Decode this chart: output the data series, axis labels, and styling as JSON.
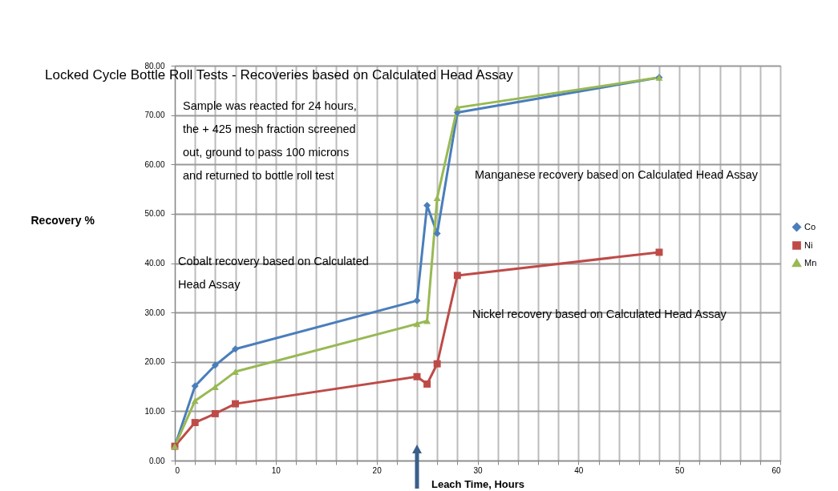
{
  "chart_data": {
    "type": "line",
    "title": "Locked Cycle Bottle Roll Tests  - Recoveries based on Calculated Head Assay",
    "xlabel": "Leach Time, Hours",
    "ylabel": "Recovery %",
    "x": [
      0,
      2,
      4,
      6,
      24,
      25,
      26,
      28,
      48
    ],
    "series": [
      {
        "name": "Co",
        "color": "#4a7ebb",
        "marker": "diamond",
        "values": [
          2.9,
          15.1,
          19.3,
          22.6,
          32.4,
          51.7,
          46.0,
          70.5,
          77.6
        ]
      },
      {
        "name": "Ni",
        "color": "#be4b48",
        "marker": "square",
        "values": [
          2.9,
          7.7,
          9.5,
          11.5,
          17.0,
          15.5,
          19.6,
          37.5,
          42.2
        ]
      },
      {
        "name": "Mn",
        "color": "#98b954",
        "marker": "triangle",
        "values": [
          2.9,
          12.1,
          14.9,
          18.0,
          27.7,
          28.3,
          53.2,
          71.5,
          77.6
        ]
      }
    ],
    "xlim": [
      0,
      60
    ],
    "xticks": [
      0,
      {
        "value": 2,
        "label": null
      },
      {
        "value": 4,
        "label": null
      },
      {
        "value": 6,
        "label": null
      },
      {
        "value": 8,
        "label": null
      },
      10,
      {
        "value": 12,
        "label": null
      },
      {
        "value": 14,
        "label": null
      },
      {
        "value": 16,
        "label": null
      },
      {
        "value": 18,
        "label": null
      },
      20,
      {
        "value": 22,
        "label": null
      },
      {
        "value": 24,
        "label": null
      },
      {
        "value": 26,
        "label": null
      },
      {
        "value": 28,
        "label": null
      },
      30,
      {
        "value": 32,
        "label": null
      },
      {
        "value": 34,
        "label": null
      },
      {
        "value": 36,
        "label": null
      },
      {
        "value": 38,
        "label": null
      },
      40,
      {
        "value": 42,
        "label": null
      },
      {
        "value": 44,
        "label": null
      },
      {
        "value": 46,
        "label": null
      },
      {
        "value": 48,
        "label": null
      },
      50,
      {
        "value": 52,
        "label": null
      },
      {
        "value": 54,
        "label": null
      },
      {
        "value": 56,
        "label": null
      },
      {
        "value": 58,
        "label": null
      },
      60
    ],
    "ylim": [
      0,
      80
    ],
    "yticks": [
      {
        "value": 0,
        "label": "0.00"
      },
      {
        "value": 10,
        "label": "10.00"
      },
      {
        "value": 20,
        "label": "20.00"
      },
      {
        "value": 30,
        "label": "30.00"
      },
      {
        "value": 40,
        "label": "40.00"
      },
      {
        "value": 50,
        "label": "50.00"
      },
      {
        "value": 60,
        "label": "60.00"
      },
      {
        "value": 70,
        "label": "70.00"
      },
      {
        "value": 80,
        "label": "80.00"
      }
    ],
    "grid": true,
    "legend": "right",
    "line_style": "solid",
    "annotations": [
      "Sample was reacted for 24 hours,\nthe + 425 mesh fraction screened\nout, ground to pass 100  microns\nand returned to bottle roll test",
      "Manganese recovery based on Calculated Head Assay",
      "Cobalt recovery based on Calculated\nHead Assay",
      "Nickel recovery based on Calculated Head Assay"
    ]
  }
}
